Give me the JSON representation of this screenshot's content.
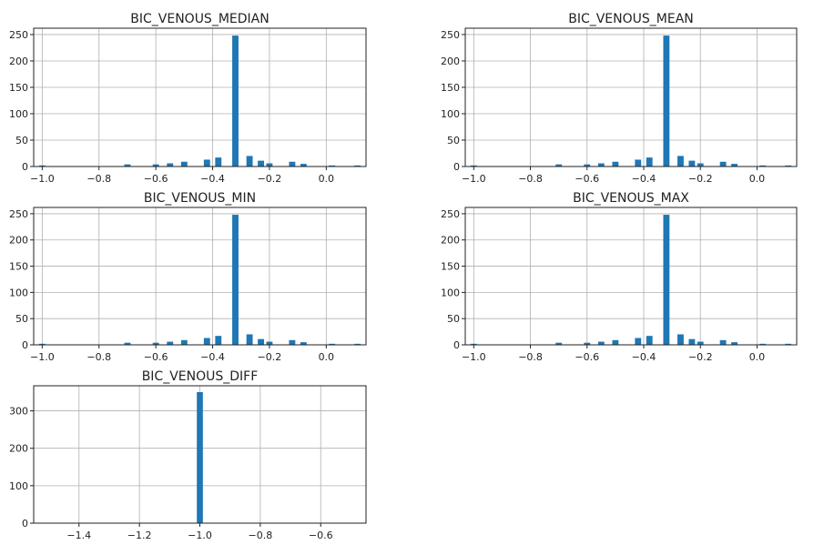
{
  "chart_data": [
    {
      "type": "bar",
      "subtype": "histogram",
      "title": "BIC_VENOUS_MEDIAN",
      "xlim": [
        -1.03,
        0.14
      ],
      "ylim": [
        0,
        262
      ],
      "xticks": [
        -1.0,
        -0.8,
        -0.6,
        -0.4,
        -0.2,
        0.0
      ],
      "xtick_labels": [
        "−1.0",
        "−0.8",
        "−0.6",
        "−0.4",
        "−0.2",
        "0.0"
      ],
      "yticks": [
        0,
        50,
        100,
        150,
        200,
        250
      ],
      "ytick_labels": [
        "0",
        "50",
        "100",
        "150",
        "200",
        "250"
      ],
      "bin_width": 0.022,
      "bars": [
        {
          "x": -1.0,
          "y": 2
        },
        {
          "x": -0.7,
          "y": 4
        },
        {
          "x": -0.6,
          "y": 4
        },
        {
          "x": -0.55,
          "y": 6
        },
        {
          "x": -0.5,
          "y": 9
        },
        {
          "x": -0.42,
          "y": 13
        },
        {
          "x": -0.38,
          "y": 17
        },
        {
          "x": -0.32,
          "y": 248
        },
        {
          "x": -0.27,
          "y": 20
        },
        {
          "x": -0.23,
          "y": 11
        },
        {
          "x": -0.2,
          "y": 6
        },
        {
          "x": -0.12,
          "y": 9
        },
        {
          "x": -0.08,
          "y": 5
        },
        {
          "x": 0.02,
          "y": 2
        },
        {
          "x": 0.11,
          "y": 2
        }
      ]
    },
    {
      "type": "bar",
      "subtype": "histogram",
      "title": "BIC_VENOUS_MEAN",
      "xlim": [
        -1.03,
        0.14
      ],
      "ylim": [
        0,
        262
      ],
      "xticks": [
        -1.0,
        -0.8,
        -0.6,
        -0.4,
        -0.2,
        0.0
      ],
      "xtick_labels": [
        "−1.0",
        "−0.8",
        "−0.6",
        "−0.4",
        "−0.2",
        "0.0"
      ],
      "yticks": [
        0,
        50,
        100,
        150,
        200,
        250
      ],
      "ytick_labels": [
        "0",
        "50",
        "100",
        "150",
        "200",
        "250"
      ],
      "bin_width": 0.022,
      "bars": [
        {
          "x": -1.0,
          "y": 2
        },
        {
          "x": -0.7,
          "y": 4
        },
        {
          "x": -0.6,
          "y": 4
        },
        {
          "x": -0.55,
          "y": 6
        },
        {
          "x": -0.5,
          "y": 9
        },
        {
          "x": -0.42,
          "y": 13
        },
        {
          "x": -0.38,
          "y": 17
        },
        {
          "x": -0.32,
          "y": 248
        },
        {
          "x": -0.27,
          "y": 20
        },
        {
          "x": -0.23,
          "y": 11
        },
        {
          "x": -0.2,
          "y": 6
        },
        {
          "x": -0.12,
          "y": 9
        },
        {
          "x": -0.08,
          "y": 5
        },
        {
          "x": 0.02,
          "y": 2
        },
        {
          "x": 0.11,
          "y": 2
        }
      ]
    },
    {
      "type": "bar",
      "subtype": "histogram",
      "title": "BIC_VENOUS_MIN",
      "xlim": [
        -1.03,
        0.14
      ],
      "ylim": [
        0,
        262
      ],
      "xticks": [
        -1.0,
        -0.8,
        -0.6,
        -0.4,
        -0.2,
        0.0
      ],
      "xtick_labels": [
        "−1.0",
        "−0.8",
        "−0.6",
        "−0.4",
        "−0.2",
        "0.0"
      ],
      "yticks": [
        0,
        50,
        100,
        150,
        200,
        250
      ],
      "ytick_labels": [
        "0",
        "50",
        "100",
        "150",
        "200",
        "250"
      ],
      "bin_width": 0.022,
      "bars": [
        {
          "x": -1.0,
          "y": 2
        },
        {
          "x": -0.7,
          "y": 4
        },
        {
          "x": -0.6,
          "y": 4
        },
        {
          "x": -0.55,
          "y": 6
        },
        {
          "x": -0.5,
          "y": 9
        },
        {
          "x": -0.42,
          "y": 13
        },
        {
          "x": -0.38,
          "y": 17
        },
        {
          "x": -0.32,
          "y": 248
        },
        {
          "x": -0.27,
          "y": 20
        },
        {
          "x": -0.23,
          "y": 11
        },
        {
          "x": -0.2,
          "y": 6
        },
        {
          "x": -0.12,
          "y": 9
        },
        {
          "x": -0.08,
          "y": 5
        },
        {
          "x": 0.02,
          "y": 2
        },
        {
          "x": 0.11,
          "y": 2
        }
      ]
    },
    {
      "type": "bar",
      "subtype": "histogram",
      "title": "BIC_VENOUS_MAX",
      "xlim": [
        -1.03,
        0.14
      ],
      "ylim": [
        0,
        262
      ],
      "xticks": [
        -1.0,
        -0.8,
        -0.6,
        -0.4,
        -0.2,
        0.0
      ],
      "xtick_labels": [
        "−1.0",
        "−0.8",
        "−0.6",
        "−0.4",
        "−0.2",
        "0.0"
      ],
      "yticks": [
        0,
        50,
        100,
        150,
        200,
        250
      ],
      "ytick_labels": [
        "0",
        "50",
        "100",
        "150",
        "200",
        "250"
      ],
      "bin_width": 0.022,
      "bars": [
        {
          "x": -1.0,
          "y": 2
        },
        {
          "x": -0.7,
          "y": 4
        },
        {
          "x": -0.6,
          "y": 4
        },
        {
          "x": -0.55,
          "y": 6
        },
        {
          "x": -0.5,
          "y": 9
        },
        {
          "x": -0.42,
          "y": 13
        },
        {
          "x": -0.38,
          "y": 17
        },
        {
          "x": -0.32,
          "y": 248
        },
        {
          "x": -0.27,
          "y": 20
        },
        {
          "x": -0.23,
          "y": 11
        },
        {
          "x": -0.2,
          "y": 6
        },
        {
          "x": -0.12,
          "y": 9
        },
        {
          "x": -0.08,
          "y": 5
        },
        {
          "x": 0.02,
          "y": 2
        },
        {
          "x": 0.11,
          "y": 2
        }
      ]
    },
    {
      "type": "bar",
      "subtype": "histogram",
      "title": "BIC_VENOUS_DIFF",
      "xlim": [
        -1.55,
        -0.45
      ],
      "ylim": [
        0,
        367
      ],
      "xticks": [
        -1.4,
        -1.2,
        -1.0,
        -0.8,
        -0.6
      ],
      "xtick_labels": [
        "−1.4",
        "−1.2",
        "−1.0",
        "−0.8",
        "−0.6"
      ],
      "yticks": [
        0,
        100,
        200,
        300
      ],
      "ytick_labels": [
        "0",
        "100",
        "200",
        "300"
      ],
      "bin_width": 0.02,
      "bars": [
        {
          "x": -1.0,
          "y": 350
        }
      ]
    }
  ]
}
